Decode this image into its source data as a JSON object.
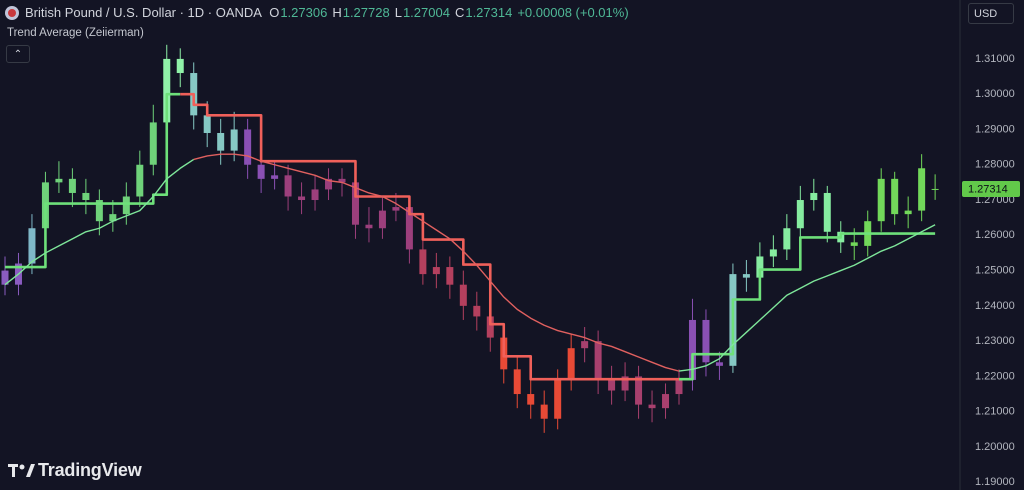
{
  "chart_data": {
    "type": "candlestick",
    "title": "British Pound / U.S. Dollar · 1D · OANDA",
    "legend": [
      {
        "label": "O",
        "value": 1.27306
      },
      {
        "label": "H",
        "value": 1.27728
      },
      {
        "label": "L",
        "value": 1.27004
      },
      {
        "label": "C",
        "value": 1.27314
      }
    ],
    "change": "+0.00008 (+0.01%)",
    "indicator": "Trend Average (Zeiierman)",
    "currency": "USD",
    "brand": "TradingView",
    "last_price": 1.27314,
    "last_price_color": "#62c94a",
    "grid": false,
    "ylim": [
      1.1878,
      1.3267
    ],
    "yticks": [
      {
        "value": 1.19,
        "label": "1.19000"
      },
      {
        "value": 1.2,
        "label": "1.20000"
      },
      {
        "value": 1.21,
        "label": "1.21000"
      },
      {
        "value": 1.22,
        "label": "1.22000"
      },
      {
        "value": 1.23,
        "label": "1.23000"
      },
      {
        "value": 1.24,
        "label": "1.24000"
      },
      {
        "value": 1.25,
        "label": "1.25000"
      },
      {
        "value": 1.26,
        "label": "1.26000"
      },
      {
        "value": 1.27,
        "label": "1.27000"
      },
      {
        "value": 1.28,
        "label": "1.28000"
      },
      {
        "value": 1.29,
        "label": "1.29000"
      },
      {
        "value": 1.3,
        "label": "1.30000"
      },
      {
        "value": 1.31,
        "label": "1.31000"
      }
    ],
    "candles": {
      "open": [
        1.25,
        1.246,
        1.252,
        1.262,
        1.275,
        1.276,
        1.272,
        1.27,
        1.264,
        1.266,
        1.271,
        1.28,
        1.292,
        1.31,
        1.306,
        1.294,
        1.289,
        1.284,
        1.29,
        1.28,
        1.276,
        1.277,
        1.271,
        1.27,
        1.273,
        1.276,
        1.275,
        1.263,
        1.262,
        1.267,
        1.268,
        1.256,
        1.249,
        1.251,
        1.246,
        1.24,
        1.237,
        1.231,
        1.222,
        1.215,
        1.212,
        1.208,
        1.219,
        1.228,
        1.23,
        1.219,
        1.216,
        1.22,
        1.212,
        1.211,
        1.215,
        1.219,
        1.236,
        1.224,
        1.223,
        1.249,
        1.248,
        1.254,
        1.256,
        1.262,
        1.27,
        1.272,
        1.261,
        1.258,
        1.257,
        1.264,
        1.276,
        1.266,
        1.267,
        1.27306
      ],
      "high": [
        1.254,
        1.255,
        1.266,
        1.278,
        1.281,
        1.279,
        1.276,
        1.273,
        1.27,
        1.275,
        1.284,
        1.297,
        1.314,
        1.313,
        1.309,
        1.298,
        1.293,
        1.295,
        1.293,
        1.283,
        1.281,
        1.28,
        1.275,
        1.277,
        1.279,
        1.279,
        1.278,
        1.268,
        1.271,
        1.272,
        1.271,
        1.259,
        1.255,
        1.254,
        1.25,
        1.244,
        1.24,
        1.234,
        1.226,
        1.219,
        1.216,
        1.222,
        1.232,
        1.234,
        1.233,
        1.223,
        1.224,
        1.223,
        1.216,
        1.218,
        1.222,
        1.242,
        1.239,
        1.227,
        1.252,
        1.253,
        1.258,
        1.26,
        1.266,
        1.274,
        1.276,
        1.274,
        1.264,
        1.262,
        1.267,
        1.279,
        1.278,
        1.271,
        1.283,
        1.27728
      ],
      "low": [
        1.243,
        1.243,
        1.249,
        1.259,
        1.272,
        1.268,
        1.266,
        1.26,
        1.261,
        1.263,
        1.268,
        1.277,
        1.289,
        1.302,
        1.29,
        1.285,
        1.28,
        1.281,
        1.276,
        1.272,
        1.273,
        1.267,
        1.266,
        1.267,
        1.27,
        1.271,
        1.259,
        1.258,
        1.259,
        1.264,
        1.252,
        1.246,
        1.245,
        1.242,
        1.236,
        1.233,
        1.227,
        1.218,
        1.211,
        1.208,
        1.204,
        1.205,
        1.216,
        1.224,
        1.215,
        1.212,
        1.213,
        1.208,
        1.207,
        1.208,
        1.212,
        1.216,
        1.22,
        1.219,
        1.221,
        1.244,
        1.245,
        1.251,
        1.253,
        1.259,
        1.267,
        1.258,
        1.255,
        1.253,
        1.254,
        1.261,
        1.263,
        1.262,
        1.264,
        1.27004
      ],
      "close": [
        1.246,
        1.252,
        1.262,
        1.275,
        1.276,
        1.272,
        1.27,
        1.264,
        1.266,
        1.271,
        1.28,
        1.292,
        1.31,
        1.306,
        1.294,
        1.289,
        1.284,
        1.29,
        1.28,
        1.276,
        1.277,
        1.271,
        1.27,
        1.273,
        1.276,
        1.275,
        1.263,
        1.262,
        1.267,
        1.268,
        1.256,
        1.249,
        1.251,
        1.246,
        1.24,
        1.237,
        1.231,
        1.222,
        1.215,
        1.212,
        1.208,
        1.219,
        1.228,
        1.23,
        1.219,
        1.216,
        1.22,
        1.212,
        1.211,
        1.215,
        1.219,
        1.236,
        1.224,
        1.223,
        1.249,
        1.248,
        1.254,
        1.256,
        1.262,
        1.27,
        1.272,
        1.261,
        1.258,
        1.257,
        1.264,
        1.276,
        1.266,
        1.267,
        1.279,
        1.27314
      ],
      "colors": [
        "#8a5cc0",
        "#8a5cc0",
        "#7fb8c8",
        "#6fd27a",
        "#6fd27a",
        "#6fd27a",
        "#6fd27a",
        "#6fd27a",
        "#6fd27a",
        "#6fd27a",
        "#6fd27a",
        "#6fd27a",
        "#90f2a8",
        "#90f2a8",
        "#86c8c4",
        "#86c8c4",
        "#86c8c4",
        "#86c8c4",
        "#8a50b4",
        "#8a50b4",
        "#8a50b4",
        "#9c3f7c",
        "#9c3f7c",
        "#9c3f7c",
        "#9c3f7c",
        "#9c3f7c",
        "#9c3f7c",
        "#9c3f7c",
        "#9c3f7c",
        "#9c3f7c",
        "#9c3f7c",
        "#b4405e",
        "#b4405e",
        "#b4405e",
        "#b4405e",
        "#b4405e",
        "#b4405e",
        "#e84a36",
        "#e84a36",
        "#e84a36",
        "#e84a36",
        "#e84a36",
        "#e84a36",
        "#a8406e",
        "#a8406e",
        "#a8406e",
        "#a8406e",
        "#a8406e",
        "#a8406e",
        "#a8406e",
        "#a8406e",
        "#8a50b4",
        "#8a50b4",
        "#8a50b4",
        "#86c8c4",
        "#86c8c4",
        "#86eca0",
        "#86eca0",
        "#86eca0",
        "#86eca0",
        "#86eca0",
        "#86eca0",
        "#86eca0",
        "#72d85a",
        "#72d85a",
        "#72d85a",
        "#72d85a",
        "#72d85a",
        "#72d85a",
        "#72d85a"
      ]
    },
    "lines": [
      {
        "color": "#6ee07a",
        "step": true,
        "values": [
          1.251,
          1.251,
          1.251,
          1.269,
          1.269,
          1.269,
          1.269,
          1.269,
          1.269,
          1.269,
          1.269,
          1.2715,
          1.3,
          1.3,
          null,
          null,
          null,
          null,
          null,
          null,
          null,
          null,
          null,
          null,
          null,
          null,
          null,
          null,
          null,
          null,
          null,
          null,
          null,
          null,
          null,
          null,
          null,
          null,
          null,
          null,
          null,
          null,
          null,
          null,
          null,
          null,
          null,
          null,
          null,
          null,
          1.2192,
          1.2263,
          1.2263,
          1.2263,
          1.2418,
          1.2418,
          1.2503,
          1.2503,
          1.2503,
          1.2594,
          1.2594,
          1.2594,
          1.2605,
          1.2605,
          1.2605,
          1.2605,
          1.2605,
          1.2605,
          1.2605,
          1.2605
        ]
      },
      {
        "color": "#f0605a",
        "step": true,
        "values": [
          null,
          null,
          null,
          null,
          null,
          null,
          null,
          null,
          null,
          null,
          null,
          null,
          null,
          1.3,
          1.297,
          1.294,
          1.294,
          1.294,
          1.294,
          1.281,
          1.281,
          1.281,
          1.281,
          1.281,
          1.281,
          1.281,
          1.271,
          1.271,
          1.271,
          1.271,
          1.266,
          1.2588,
          1.2588,
          1.2588,
          1.2517,
          1.2517,
          1.2348,
          1.2257,
          1.2257,
          1.2192,
          1.2192,
          1.2192,
          1.2192,
          1.2192,
          1.2192,
          1.2192,
          1.2192,
          1.2192,
          1.2192,
          1.2192,
          1.2192,
          null,
          null,
          null,
          null,
          null,
          null,
          null,
          null,
          null,
          null,
          null,
          null,
          null,
          null,
          null,
          null,
          null,
          null,
          null
        ]
      },
      {
        "color": "#7ee69a",
        "step": false,
        "values": [
          1.246,
          1.249,
          1.2525,
          1.255,
          1.257,
          1.259,
          1.261,
          1.262,
          1.264,
          1.2655,
          1.267,
          1.271,
          1.276,
          1.279,
          1.2815,
          null,
          null,
          null,
          null,
          null,
          null,
          null,
          null,
          null,
          null,
          null,
          null,
          null,
          null,
          null,
          null,
          null,
          null,
          null,
          null,
          null,
          null,
          null,
          null,
          null,
          null,
          null,
          null,
          null,
          null,
          null,
          null,
          null,
          null,
          null,
          1.2215,
          1.222,
          1.223,
          1.225,
          1.229,
          1.2325,
          1.236,
          1.2395,
          1.243,
          1.245,
          1.247,
          1.2485,
          1.25,
          1.2515,
          1.2535,
          1.2555,
          1.257,
          1.259,
          1.261,
          1.263
        ]
      },
      {
        "color": "#e0605f",
        "step": false,
        "values": [
          null,
          null,
          null,
          null,
          null,
          null,
          null,
          null,
          null,
          null,
          null,
          null,
          null,
          null,
          1.2815,
          1.2825,
          1.283,
          1.283,
          1.2825,
          1.281,
          1.28,
          1.279,
          1.278,
          1.277,
          1.2755,
          1.275,
          1.2735,
          1.272,
          1.271,
          1.269,
          1.2665,
          1.264,
          1.2615,
          1.259,
          1.2555,
          1.2515,
          1.247,
          1.2425,
          1.239,
          1.2365,
          1.2345,
          1.233,
          1.232,
          1.231,
          1.2295,
          1.2285,
          1.227,
          1.2255,
          1.224,
          1.2225,
          1.2215,
          null,
          null,
          null,
          null,
          null,
          null,
          null,
          null,
          null,
          null,
          null,
          null,
          null,
          null,
          null,
          null,
          null,
          null,
          null
        ]
      }
    ]
  }
}
